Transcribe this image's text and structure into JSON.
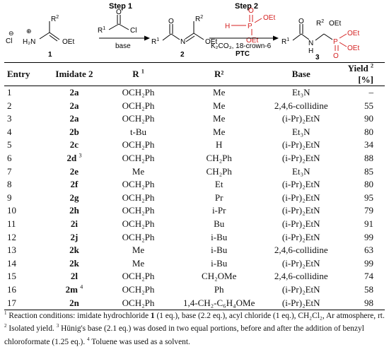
{
  "scheme": {
    "step1_label": "Step 1",
    "step2_label": "Step 2",
    "reagent1_under": "base",
    "reagent2_under_line1": "K₂CO₃, 18-crown-6",
    "reagent2_under_line2": "PTC",
    "cmpd1_num": "1",
    "cmpd2_num": "2",
    "cmpd3_num": "3",
    "cl_anion": "Cl",
    "minus": "⊖",
    "plus": "⊕",
    "h2n": "H₂N",
    "oet": "OEt",
    "r1": "R",
    "r1_sup": "1",
    "r2": "R",
    "r2_sup": "2",
    "cl": "Cl",
    "o": "O",
    "n": "N",
    "nh_n": "N",
    "nh_h": "H",
    "p": "P",
    "h": "H"
  },
  "table": {
    "headers": {
      "entry": "Entry",
      "imidate": "Imidate 2",
      "r1": "R",
      "r1_sup": "1",
      "r2": "R²",
      "base": "Base",
      "yield": "Yield",
      "yield_sup": "2",
      "yield_unit": "[%]"
    },
    "rows": [
      {
        "entry": "1",
        "imidate": "2a",
        "imidate_sup": "",
        "r1": "OCH₂Ph",
        "r2": "Me",
        "base": "Et₃N",
        "yield": "–"
      },
      {
        "entry": "2",
        "imidate": "2a",
        "imidate_sup": "",
        "r1": "OCH₂Ph",
        "r2": "Me",
        "base": "2,4,6-collidine",
        "yield": "55"
      },
      {
        "entry": "3",
        "imidate": "2a",
        "imidate_sup": "",
        "r1": "OCH₂Ph",
        "r2": "Me",
        "base": "(i-Pr)₂EtN",
        "yield": "90"
      },
      {
        "entry": "4",
        "imidate": "2b",
        "imidate_sup": "",
        "r1": "t-Bu",
        "r2": "Me",
        "base": "Et₃N",
        "yield": "80"
      },
      {
        "entry": "5",
        "imidate": "2c",
        "imidate_sup": "",
        "r1": "OCH₂Ph",
        "r2": "H",
        "base": "(i-Pr)₂EtN",
        "yield": "34"
      },
      {
        "entry": "6",
        "imidate": "2d",
        "imidate_sup": "3",
        "r1": "OCH₂Ph",
        "r2": "CH₂Ph",
        "base": "(i-Pr)₂EtN",
        "yield": "88"
      },
      {
        "entry": "7",
        "imidate": "2e",
        "imidate_sup": "",
        "r1": "Me",
        "r2": "CH₂Ph",
        "base": "Et₃N",
        "yield": "85"
      },
      {
        "entry": "8",
        "imidate": "2f",
        "imidate_sup": "",
        "r1": "OCH₂Ph",
        "r2": "Et",
        "base": "(i-Pr)₂EtN",
        "yield": "80"
      },
      {
        "entry": "9",
        "imidate": "2g",
        "imidate_sup": "",
        "r1": "OCH₂Ph",
        "r2": "Pr",
        "base": "(i-Pr)₂EtN",
        "yield": "95"
      },
      {
        "entry": "10",
        "imidate": "2h",
        "imidate_sup": "",
        "r1": "OCH₂Ph",
        "r2": "i-Pr",
        "base": "(i-Pr)₂EtN",
        "yield": "79"
      },
      {
        "entry": "11",
        "imidate": "2i",
        "imidate_sup": "",
        "r1": "OCH₂Ph",
        "r2": "Bu",
        "base": "(i-Pr)₂EtN",
        "yield": "91"
      },
      {
        "entry": "12",
        "imidate": "2j",
        "imidate_sup": "",
        "r1": "OCH₂Ph",
        "r2": "i-Bu",
        "base": "(i-Pr)₂EtN",
        "yield": "99"
      },
      {
        "entry": "13",
        "imidate": "2k",
        "imidate_sup": "",
        "r1": "Me",
        "r2": "i-Bu",
        "base": "2,4,6-collidine",
        "yield": "63"
      },
      {
        "entry": "14",
        "imidate": "2k",
        "imidate_sup": "",
        "r1": "Me",
        "r2": "i-Bu",
        "base": "(i-Pr)₂EtN",
        "yield": "99"
      },
      {
        "entry": "15",
        "imidate": "2l",
        "imidate_sup": "",
        "r1": "OCH₂Ph",
        "r2": "CH₂OMe",
        "base": "2,4,6-collidine",
        "yield": "74"
      },
      {
        "entry": "16",
        "imidate": "2m",
        "imidate_sup": "4",
        "r1": "OCH₂Ph",
        "r2": "Ph",
        "base": "(i-Pr)₂EtN",
        "yield": "58"
      },
      {
        "entry": "17",
        "imidate": "2n",
        "imidate_sup": "",
        "r1": "OCH₂Ph",
        "r2": "1,4-CH₂-C₆H₄OMe",
        "base": "(i-Pr)₂EtN",
        "yield": "98"
      }
    ]
  },
  "footnote": {
    "n1": "1",
    "t1": " Reaction conditions: imidate hydrochloride ",
    "t1b": "1",
    "t1c": " (1 eq.), base (2.2 eq.), acyl chloride (1 eq.), CH₂Cl₂, Ar atmosphere, rt.",
    "n2": "2",
    "t2": " Isolated yield.",
    "n3": "3",
    "t3": " Hünig's base (2.1 eq.) was dosed in two equal portions, before and after the addition of benzyl chloroformate (1.25 eq.).",
    "n4": "4",
    "t4": " Toluene was used as a solvent."
  }
}
